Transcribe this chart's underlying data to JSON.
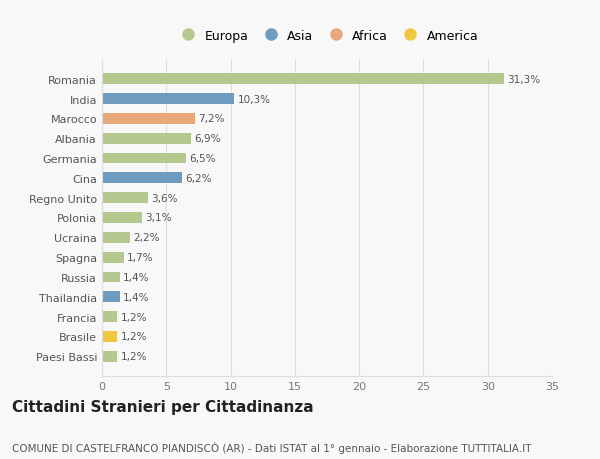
{
  "categories": [
    "Paesi Bassi",
    "Brasile",
    "Francia",
    "Thailandia",
    "Russia",
    "Spagna",
    "Ucraina",
    "Polonia",
    "Regno Unito",
    "Cina",
    "Germania",
    "Albania",
    "Marocco",
    "India",
    "Romania"
  ],
  "values": [
    1.2,
    1.2,
    1.2,
    1.4,
    1.4,
    1.7,
    2.2,
    3.1,
    3.6,
    6.2,
    6.5,
    6.9,
    7.2,
    10.3,
    31.3
  ],
  "labels": [
    "1,2%",
    "1,2%",
    "1,2%",
    "1,4%",
    "1,4%",
    "1,7%",
    "2,2%",
    "3,1%",
    "3,6%",
    "6,2%",
    "6,5%",
    "6,9%",
    "7,2%",
    "10,3%",
    "31,3%"
  ],
  "continents": [
    "Europa",
    "America",
    "Europa",
    "Asia",
    "Europa",
    "Europa",
    "Europa",
    "Europa",
    "Europa",
    "Asia",
    "Europa",
    "Europa",
    "Africa",
    "Asia",
    "Europa"
  ],
  "colors": {
    "Europa": "#b5c98e",
    "Asia": "#6e9bc0",
    "Africa": "#e8a87c",
    "America": "#f0c840"
  },
  "legend_order": [
    "Europa",
    "Asia",
    "Africa",
    "America"
  ],
  "title": "Cittadini Stranieri per Cittadinanza",
  "subtitle": "COMUNE DI CASTELFRANCO PIANDISCÒ (AR) - Dati ISTAT al 1° gennaio - Elaborazione TUTTITALIA.IT",
  "xlim": [
    0,
    35
  ],
  "xticks": [
    0,
    5,
    10,
    15,
    20,
    25,
    30,
    35
  ],
  "bg_color": "#f8f8f8",
  "grid_color": "#dddddd",
  "bar_height": 0.55,
  "title_fontsize": 11,
  "subtitle_fontsize": 7.5,
  "label_fontsize": 7.5,
  "ytick_fontsize": 8,
  "xtick_fontsize": 8,
  "legend_fontsize": 9
}
